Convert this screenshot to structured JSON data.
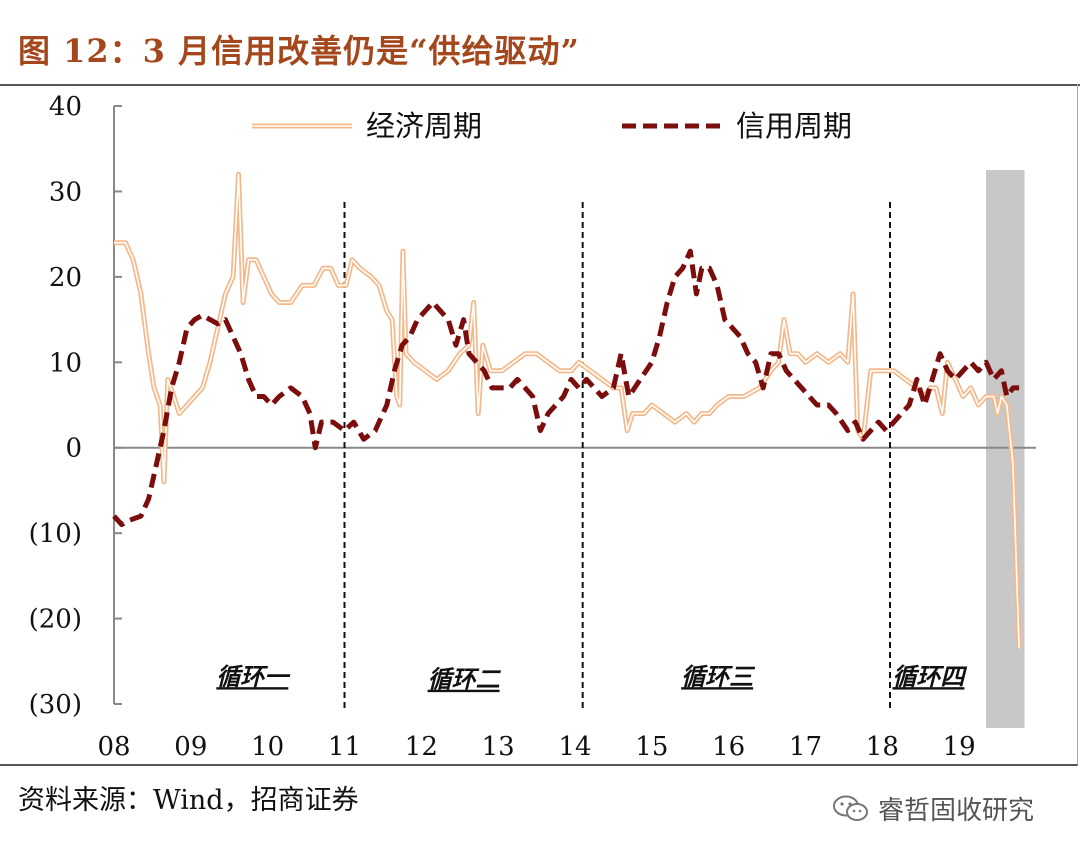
{
  "title": "图 12：3 月信用改善仍是“供给驱动”",
  "source": "资料来源：Wind，招商证券",
  "watermark": {
    "text": "睿哲固收研究",
    "icon": "wechat-icon"
  },
  "colors": {
    "economic": "#f5b88a",
    "credit": "#7b0d0d",
    "title": "#a5471c",
    "shade": "#c8c8c8"
  },
  "chart_data": {
    "type": "line",
    "title": "",
    "xlabel": "",
    "ylabel": "",
    "ylim": [
      -30,
      40
    ],
    "xlim": [
      2008.0,
      2020.0
    ],
    "yticks": [
      40,
      30,
      20,
      10,
      0,
      -10,
      -20,
      -30
    ],
    "ytick_labels": [
      "40",
      "30",
      "20",
      "10",
      "0",
      "(10)",
      "(20)",
      "(30)"
    ],
    "xticks": [
      2008,
      2009,
      2010,
      2011,
      2012,
      2013,
      2014,
      2015,
      2016,
      2017,
      2018,
      2019
    ],
    "xtick_labels": [
      "08",
      "09",
      "10",
      "11",
      "12",
      "13",
      "14",
      "15",
      "16",
      "17",
      "18",
      "19"
    ],
    "legend": {
      "placement": "top",
      "entries": [
        "经济周期",
        "信用周期"
      ]
    },
    "cycle_dividers": [
      2011.0,
      2014.1,
      2018.1
    ],
    "cycle_labels": [
      {
        "label": "循环一",
        "x": 2009.8,
        "y": -28.5
      },
      {
        "label": "循环二",
        "x": 2012.55,
        "y": -28.8
      },
      {
        "label": "循环三",
        "x": 2015.85,
        "y": -28.5
      },
      {
        "label": "循环四",
        "x": 2018.6,
        "y": -28.5
      }
    ],
    "shaded_region": [
      2019.35,
      2019.85
    ],
    "series": [
      {
        "name": "经济周期",
        "style": "double-line",
        "points": [
          [
            2008.0,
            24
          ],
          [
            2008.15,
            24
          ],
          [
            2008.25,
            22
          ],
          [
            2008.35,
            18
          ],
          [
            2008.45,
            11
          ],
          [
            2008.52,
            7
          ],
          [
            2008.6,
            5
          ],
          [
            2008.65,
            -4
          ],
          [
            2008.7,
            8
          ],
          [
            2008.78,
            6
          ],
          [
            2008.85,
            4
          ],
          [
            2008.95,
            5
          ],
          [
            2009.05,
            6
          ],
          [
            2009.15,
            7
          ],
          [
            2009.25,
            10
          ],
          [
            2009.35,
            14
          ],
          [
            2009.45,
            18
          ],
          [
            2009.55,
            20
          ],
          [
            2009.62,
            32
          ],
          [
            2009.68,
            17
          ],
          [
            2009.75,
            22
          ],
          [
            2009.85,
            22
          ],
          [
            2009.95,
            20
          ],
          [
            2010.05,
            18
          ],
          [
            2010.15,
            17
          ],
          [
            2010.3,
            17
          ],
          [
            2010.45,
            19
          ],
          [
            2010.6,
            19
          ],
          [
            2010.72,
            21
          ],
          [
            2010.82,
            21
          ],
          [
            2010.92,
            19
          ],
          [
            2011.02,
            19
          ],
          [
            2011.1,
            22
          ],
          [
            2011.2,
            21
          ],
          [
            2011.35,
            20
          ],
          [
            2011.45,
            19
          ],
          [
            2011.55,
            16
          ],
          [
            2011.62,
            15
          ],
          [
            2011.68,
            6
          ],
          [
            2011.72,
            5
          ],
          [
            2011.76,
            23
          ],
          [
            2011.8,
            11
          ],
          [
            2011.9,
            10
          ],
          [
            2012.05,
            9
          ],
          [
            2012.2,
            8
          ],
          [
            2012.35,
            9
          ],
          [
            2012.5,
            11
          ],
          [
            2012.62,
            12
          ],
          [
            2012.68,
            17
          ],
          [
            2012.74,
            4
          ],
          [
            2012.8,
            12
          ],
          [
            2012.9,
            9
          ],
          [
            2013.05,
            9
          ],
          [
            2013.2,
            10
          ],
          [
            2013.35,
            11
          ],
          [
            2013.5,
            11
          ],
          [
            2013.65,
            10
          ],
          [
            2013.8,
            9
          ],
          [
            2013.95,
            9
          ],
          [
            2014.05,
            10
          ],
          [
            2014.2,
            9
          ],
          [
            2014.35,
            8
          ],
          [
            2014.5,
            7
          ],
          [
            2014.6,
            7
          ],
          [
            2014.68,
            2
          ],
          [
            2014.75,
            4
          ],
          [
            2014.9,
            4
          ],
          [
            2015.0,
            5
          ],
          [
            2015.15,
            4
          ],
          [
            2015.3,
            3
          ],
          [
            2015.45,
            4
          ],
          [
            2015.55,
            3
          ],
          [
            2015.65,
            4
          ],
          [
            2015.75,
            4
          ],
          [
            2015.85,
            5
          ],
          [
            2016.0,
            6
          ],
          [
            2016.2,
            6
          ],
          [
            2016.4,
            7
          ],
          [
            2016.55,
            9
          ],
          [
            2016.65,
            10
          ],
          [
            2016.72,
            15
          ],
          [
            2016.8,
            11
          ],
          [
            2016.9,
            11
          ],
          [
            2017.0,
            10
          ],
          [
            2017.15,
            11
          ],
          [
            2017.3,
            10
          ],
          [
            2017.45,
            11
          ],
          [
            2017.55,
            10
          ],
          [
            2017.62,
            18
          ],
          [
            2017.68,
            2
          ],
          [
            2017.75,
            1
          ],
          [
            2017.85,
            9
          ],
          [
            2018.0,
            9
          ],
          [
            2018.15,
            9
          ],
          [
            2018.3,
            8
          ],
          [
            2018.45,
            7
          ],
          [
            2018.55,
            6
          ],
          [
            2018.62,
            7
          ],
          [
            2018.7,
            7
          ],
          [
            2018.78,
            4
          ],
          [
            2018.85,
            10
          ],
          [
            2018.95,
            8
          ],
          [
            2019.05,
            6
          ],
          [
            2019.15,
            7
          ],
          [
            2019.25,
            5
          ],
          [
            2019.35,
            6
          ],
          [
            2019.45,
            6
          ],
          [
            2019.5,
            4
          ],
          [
            2019.55,
            6
          ],
          [
            2019.62,
            5
          ],
          [
            2019.7,
            -2
          ],
          [
            2019.78,
            -23.5
          ]
        ]
      },
      {
        "name": "信用周期",
        "style": "dashed",
        "points": [
          [
            2008.0,
            -8
          ],
          [
            2008.1,
            -9
          ],
          [
            2008.2,
            -8.5
          ],
          [
            2008.35,
            -8
          ],
          [
            2008.45,
            -6
          ],
          [
            2008.55,
            -2
          ],
          [
            2008.65,
            2
          ],
          [
            2008.75,
            7
          ],
          [
            2008.85,
            10
          ],
          [
            2008.95,
            14
          ],
          [
            2009.05,
            15
          ],
          [
            2009.15,
            15.5
          ],
          [
            2009.25,
            15
          ],
          [
            2009.35,
            14.5
          ],
          [
            2009.45,
            15
          ],
          [
            2009.55,
            13
          ],
          [
            2009.65,
            11
          ],
          [
            2009.75,
            8
          ],
          [
            2009.85,
            6
          ],
          [
            2009.95,
            6
          ],
          [
            2010.05,
            5
          ],
          [
            2010.15,
            6
          ],
          [
            2010.3,
            7
          ],
          [
            2010.45,
            6
          ],
          [
            2010.55,
            4
          ],
          [
            2010.62,
            0
          ],
          [
            2010.7,
            3
          ],
          [
            2010.85,
            3
          ],
          [
            2011.0,
            2
          ],
          [
            2011.12,
            3
          ],
          [
            2011.25,
            1
          ],
          [
            2011.4,
            2
          ],
          [
            2011.55,
            5
          ],
          [
            2011.65,
            9
          ],
          [
            2011.75,
            12
          ],
          [
            2011.85,
            13
          ],
          [
            2011.95,
            15
          ],
          [
            2012.05,
            16
          ],
          [
            2012.15,
            17
          ],
          [
            2012.25,
            16
          ],
          [
            2012.35,
            15
          ],
          [
            2012.45,
            12
          ],
          [
            2012.55,
            15
          ],
          [
            2012.62,
            11
          ],
          [
            2012.72,
            10
          ],
          [
            2012.82,
            9
          ],
          [
            2012.92,
            7
          ],
          [
            2013.05,
            7
          ],
          [
            2013.15,
            7
          ],
          [
            2013.25,
            8
          ],
          [
            2013.35,
            7
          ],
          [
            2013.45,
            6
          ],
          [
            2013.55,
            2
          ],
          [
            2013.65,
            4
          ],
          [
            2013.75,
            5
          ],
          [
            2013.85,
            6
          ],
          [
            2013.95,
            8
          ],
          [
            2014.05,
            7
          ],
          [
            2014.15,
            8
          ],
          [
            2014.25,
            7
          ],
          [
            2014.35,
            6
          ],
          [
            2014.5,
            7
          ],
          [
            2014.6,
            11
          ],
          [
            2014.7,
            6
          ],
          [
            2014.85,
            8
          ],
          [
            2015.0,
            10
          ],
          [
            2015.1,
            13
          ],
          [
            2015.2,
            17
          ],
          [
            2015.3,
            20
          ],
          [
            2015.4,
            21
          ],
          [
            2015.5,
            23
          ],
          [
            2015.58,
            18
          ],
          [
            2015.65,
            21
          ],
          [
            2015.75,
            21
          ],
          [
            2015.85,
            19
          ],
          [
            2015.95,
            15
          ],
          [
            2016.05,
            14
          ],
          [
            2016.15,
            13
          ],
          [
            2016.25,
            11
          ],
          [
            2016.35,
            10
          ],
          [
            2016.45,
            7
          ],
          [
            2016.55,
            11
          ],
          [
            2016.65,
            11
          ],
          [
            2016.75,
            9
          ],
          [
            2016.85,
            8
          ],
          [
            2016.95,
            7
          ],
          [
            2017.05,
            6
          ],
          [
            2017.15,
            5
          ],
          [
            2017.3,
            5
          ],
          [
            2017.4,
            4
          ],
          [
            2017.55,
            2
          ],
          [
            2017.65,
            3
          ],
          [
            2017.75,
            1
          ],
          [
            2017.85,
            2
          ],
          [
            2017.95,
            3
          ],
          [
            2018.05,
            2
          ],
          [
            2018.15,
            3
          ],
          [
            2018.25,
            4
          ],
          [
            2018.35,
            5
          ],
          [
            2018.45,
            8
          ],
          [
            2018.55,
            5
          ],
          [
            2018.65,
            8
          ],
          [
            2018.75,
            11
          ],
          [
            2018.85,
            9
          ],
          [
            2018.95,
            8
          ],
          [
            2019.05,
            9
          ],
          [
            2019.15,
            10
          ],
          [
            2019.25,
            9
          ],
          [
            2019.35,
            10
          ],
          [
            2019.45,
            8
          ],
          [
            2019.55,
            9
          ],
          [
            2019.62,
            6
          ],
          [
            2019.7,
            7
          ],
          [
            2019.78,
            7
          ]
        ]
      }
    ]
  }
}
